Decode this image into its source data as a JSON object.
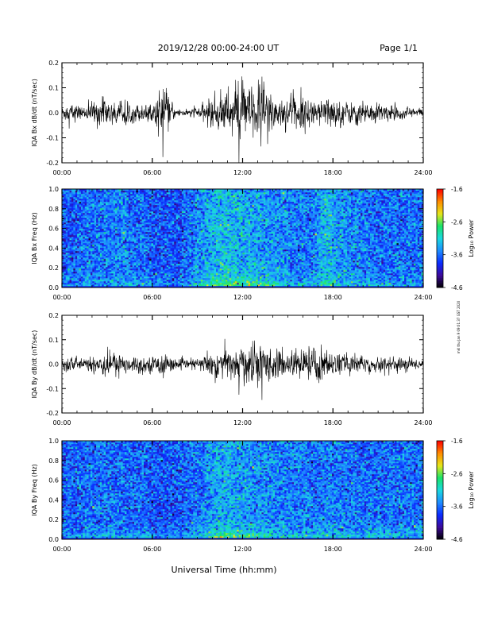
{
  "header": {
    "title": "2019/12/28  00:00-24:00 UT",
    "page": "Page 1/1"
  },
  "footer": {
    "xlabel": "Universal Time (hh:mm)",
    "credit": "mkl thu Jan 9 09:01:37 GST 2020"
  },
  "colorbar": {
    "label": "Log₁₀ Power",
    "ticks": [
      "-1.6",
      "-2.6",
      "-3.6",
      "-4.6"
    ],
    "tick_values": [
      -1.6,
      -2.6,
      -3.6,
      -4.6
    ],
    "range": [
      -4.6,
      -1.6
    ],
    "colors": [
      "#000000",
      "#3d0a9a",
      "#0a2bff",
      "#1e8cff",
      "#1ad8e0",
      "#19e36a",
      "#e6e61a",
      "#ff8c00",
      "#ff0000"
    ]
  },
  "chart_data": [
    {
      "type": "line",
      "ylabel": "IQA Bx dB/dt (nT/sec)",
      "xlim": [
        0,
        24
      ],
      "ylim": [
        -0.2,
        0.2
      ],
      "x_tick_labels": [
        "00:00",
        "06:00",
        "12:00",
        "18:00",
        "24:00"
      ],
      "y_tick_labels": [
        "0.2",
        "0.1",
        "0.0",
        "-0.1",
        "-0.2"
      ],
      "y_ticks": [
        0.2,
        0.1,
        0.0,
        -0.1,
        -0.2
      ],
      "amplitude_envelope": {
        "x": [
          0,
          0.5,
          1.0,
          1.5,
          2.0,
          2.5,
          3.0,
          4.0,
          5.0,
          6.0,
          6.7,
          7.5,
          8.5,
          9.3,
          10.0,
          11.0,
          11.5,
          12.0,
          12.7,
          13.3,
          14.0,
          15.0,
          16.0,
          17.0,
          17.5,
          18.0,
          19.0,
          20.0,
          21.0,
          22.0,
          23.0,
          24.0
        ],
        "y": [
          0.025,
          0.05,
          0.03,
          0.025,
          0.045,
          0.06,
          0.055,
          0.04,
          0.04,
          0.03,
          0.12,
          0.02,
          0.015,
          0.03,
          0.07,
          0.09,
          0.11,
          0.12,
          0.1,
          0.16,
          0.08,
          0.06,
          0.07,
          0.055,
          0.065,
          0.06,
          0.045,
          0.05,
          0.04,
          0.03,
          0.025,
          0.02
        ]
      }
    },
    {
      "type": "heatmap",
      "ylabel": "IQA Bx Freq (Hz)",
      "xlim": [
        0,
        24
      ],
      "ylim": [
        0.0,
        1.0
      ],
      "x_tick_labels": [
        "00:00",
        "06:00",
        "12:00",
        "18:00",
        "24:00"
      ],
      "y_tick_labels": [
        "1.0",
        "0.8",
        "0.6",
        "0.4",
        "0.2",
        "0.0"
      ],
      "y_ticks": [
        1.0,
        0.8,
        0.6,
        0.4,
        0.2,
        0.0
      ],
      "z_label": "Log₁₀ Power",
      "z_range": [
        -4.6,
        -1.6
      ],
      "z_profile_by_time": {
        "x": [
          0,
          2,
          4,
          6,
          8,
          9.5,
          10.5,
          12,
          13.5,
          15,
          16.5,
          17.5,
          19,
          21,
          24
        ],
        "z_at_0_05Hz": [
          -3.4,
          -3.3,
          -3.2,
          -3.3,
          -3.4,
          -2.8,
          -2.3,
          -2.5,
          -2.5,
          -2.9,
          -3.0,
          -2.8,
          -3.0,
          -3.2,
          -3.3
        ],
        "z_background": [
          -3.7,
          -3.6,
          -3.5,
          -3.7,
          -3.7,
          -3.4,
          -3.2,
          -3.3,
          -3.4,
          -3.5,
          -3.6,
          -3.2,
          -3.5,
          -3.6,
          -3.6
        ]
      }
    },
    {
      "type": "line",
      "ylabel": "IQA By dB/dt (nT/sec)",
      "xlim": [
        0,
        24
      ],
      "ylim": [
        -0.2,
        0.2
      ],
      "x_tick_labels": [
        "00:00",
        "06:00",
        "12:00",
        "18:00",
        "24:00"
      ],
      "y_tick_labels": [
        "0.2",
        "0.1",
        "0.0",
        "-0.1",
        "-0.2"
      ],
      "y_ticks": [
        0.2,
        0.1,
        0.0,
        -0.1,
        -0.2
      ],
      "amplitude_envelope": {
        "x": [
          0,
          0.5,
          1.0,
          1.5,
          2.0,
          2.5,
          3.0,
          4.0,
          5.0,
          6.0,
          6.7,
          7.5,
          8.5,
          9.3,
          10.0,
          11.0,
          11.5,
          12.0,
          12.7,
          13.3,
          14.0,
          15.0,
          16.0,
          17.0,
          17.5,
          18.0,
          19.0,
          20.0,
          21.0,
          22.0,
          23.0,
          24.0
        ],
        "y": [
          0.02,
          0.04,
          0.025,
          0.02,
          0.04,
          0.05,
          0.06,
          0.04,
          0.035,
          0.03,
          0.05,
          0.02,
          0.02,
          0.03,
          0.06,
          0.07,
          0.08,
          0.09,
          0.07,
          0.1,
          0.06,
          0.05,
          0.06,
          0.09,
          0.06,
          0.05,
          0.04,
          0.04,
          0.035,
          0.03,
          0.025,
          0.02
        ]
      }
    },
    {
      "type": "heatmap",
      "ylabel": "IQA By Freq (Hz)",
      "xlim": [
        0,
        24
      ],
      "ylim": [
        0.0,
        1.0
      ],
      "x_tick_labels": [
        "00:00",
        "06:00",
        "12:00",
        "18:00",
        "24:00"
      ],
      "y_tick_labels": [
        "1.0",
        "0.8",
        "0.6",
        "0.4",
        "0.2",
        "0.0"
      ],
      "y_ticks": [
        1.0,
        0.8,
        0.6,
        0.4,
        0.2,
        0.0
      ],
      "z_label": "Log₁₀ Power",
      "z_range": [
        -4.6,
        -1.6
      ],
      "z_profile_by_time": {
        "x": [
          0,
          2,
          4,
          6,
          8,
          9.5,
          10.5,
          12,
          13.5,
          15,
          16.5,
          17.5,
          19,
          21,
          24
        ],
        "z_at_0_05Hz": [
          -3.3,
          -3.3,
          -3.2,
          -3.3,
          -3.3,
          -2.9,
          -2.4,
          -2.6,
          -2.6,
          -2.9,
          -3.0,
          -2.9,
          -3.0,
          -3.0,
          -3.1
        ],
        "z_background": [
          -3.7,
          -3.6,
          -3.6,
          -3.7,
          -3.7,
          -3.5,
          -3.3,
          -3.4,
          -3.5,
          -3.5,
          -3.6,
          -3.5,
          -3.6,
          -3.6,
          -3.6
        ]
      }
    }
  ]
}
